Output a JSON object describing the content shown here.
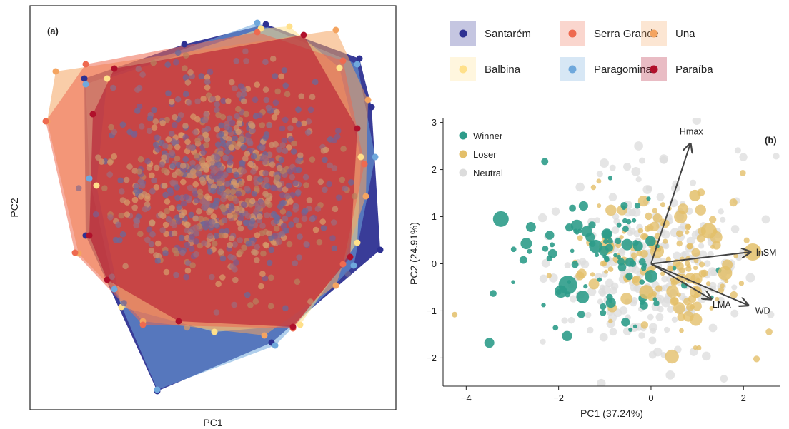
{
  "chart_data": [
    {
      "type": "scatter",
      "panel_label": "(a)",
      "xlabel": "PC1",
      "ylabel": "PC2",
      "grid": false,
      "legend_position": "top-right",
      "series": [
        {
          "name": "Santarém",
          "color": "#2E3192"
        },
        {
          "name": "Paragominas",
          "color": "#6FA8DC"
        },
        {
          "name": "Balbina",
          "color": "#FFE08A"
        },
        {
          "name": "Una",
          "color": "#F4A460"
        },
        {
          "name": "Serra Grande",
          "color": "#EE6A50"
        },
        {
          "name": "Paraíba",
          "color": "#B0102B"
        }
      ]
    },
    {
      "type": "scatter",
      "panel_label": "(b)",
      "xlabel": "PC1 (37.24%)",
      "ylabel": "PC2 (24.91%)",
      "xlim": [
        -4.5,
        2.8
      ],
      "ylim": [
        -2.6,
        3.1
      ],
      "x_ticks": [
        -4,
        -2,
        0,
        2
      ],
      "y_ticks": [
        -2,
        -1,
        0,
        1,
        2,
        3
      ],
      "grid": false,
      "legend_position": "top-left",
      "series": [
        {
          "name": "Winner",
          "color": "#2E9C8A"
        },
        {
          "name": "Loser",
          "color": "#E3BF6A"
        },
        {
          "name": "Neutral",
          "color": "#DCDCDC"
        }
      ],
      "vectors": [
        {
          "name": "Hmax",
          "x": 0.85,
          "y": 2.55
        },
        {
          "name": "lnSM",
          "x": 2.15,
          "y": 0.25
        },
        {
          "name": "LMA",
          "x": 1.3,
          "y": -0.75
        },
        {
          "name": "WD",
          "x": 2.1,
          "y": -0.88
        }
      ]
    }
  ]
}
